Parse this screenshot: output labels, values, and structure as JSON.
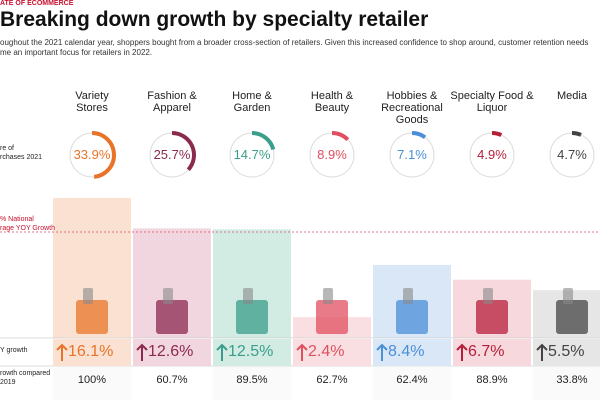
{
  "header": {
    "kicker": "ATE OF ECOMMERCE",
    "title": "Breaking down growth by specialty retailer",
    "subtitle_lines": [
      "oughout the 2021 calendar year, shoppers bought from a broader cross-section of retailers. Given this increased confidence to shop around, customer retention needs",
      "me an important focus for retailers in 2022."
    ]
  },
  "row_labels": {
    "share": [
      "re of",
      "rchases 2021"
    ],
    "national": [
      "% National",
      "rage YOY Growth"
    ],
    "growth": [
      "Y growth"
    ],
    "compared": [
      "rowth compared",
      "2019"
    ]
  },
  "retailers": [
    {
      "name": "Variety Stores",
      "color": "#e8742a",
      "bg": "#fbe1d2",
      "share": 33.9,
      "share_label": "33.9%",
      "growth": 16.1,
      "growth_label": "16.1%",
      "compared": 100,
      "compared_label": "100%"
    },
    {
      "name": "Fashion & Apparel",
      "color": "#8b2a4f",
      "bg": "#f2d6df",
      "share": 25.7,
      "share_label": "25.7%",
      "growth": 12.6,
      "growth_label": "12.6%",
      "compared": 60.7,
      "compared_label": "60.7%"
    },
    {
      "name": "Home & Garden",
      "color": "#3a9e8a",
      "bg": "#d2ebe3",
      "share": 14.7,
      "share_label": "14.7%",
      "growth": 12.5,
      "growth_label": "12.5%",
      "compared": 89.5,
      "compared_label": "89.5%"
    },
    {
      "name": "Health & Beauty",
      "color": "#e04f5f",
      "bg": "#f9dfe2",
      "share": 8.9,
      "share_label": "8.9%",
      "growth": 2.4,
      "growth_label": "2.4%",
      "compared": 62.7,
      "compared_label": "62.7%"
    },
    {
      "name": "Hobbies & Recreational Goods",
      "color": "#4a8fd8",
      "bg": "#d9e7f6",
      "share": 7.1,
      "share_label": "7.1%",
      "growth": 8.4,
      "growth_label": "8.4%",
      "compared": 62.4,
      "compared_label": "62.4%"
    },
    {
      "name": "Specialty Food & Liquor",
      "color": "#b51f3a",
      "bg": "#f6d8dd",
      "share": 4.9,
      "share_label": "4.9%",
      "growth": 6.7,
      "growth_label": "6.7%",
      "compared": 88.9,
      "compared_label": "88.9%"
    },
    {
      "name": "Media",
      "color": "#444444",
      "bg": "#e6e6e6",
      "share": 4.7,
      "share_label": "4.7%",
      "growth": 5.5,
      "growth_label": "5.5%",
      "compared": 33.8,
      "compared_label": "33.8%"
    }
  ]
}
